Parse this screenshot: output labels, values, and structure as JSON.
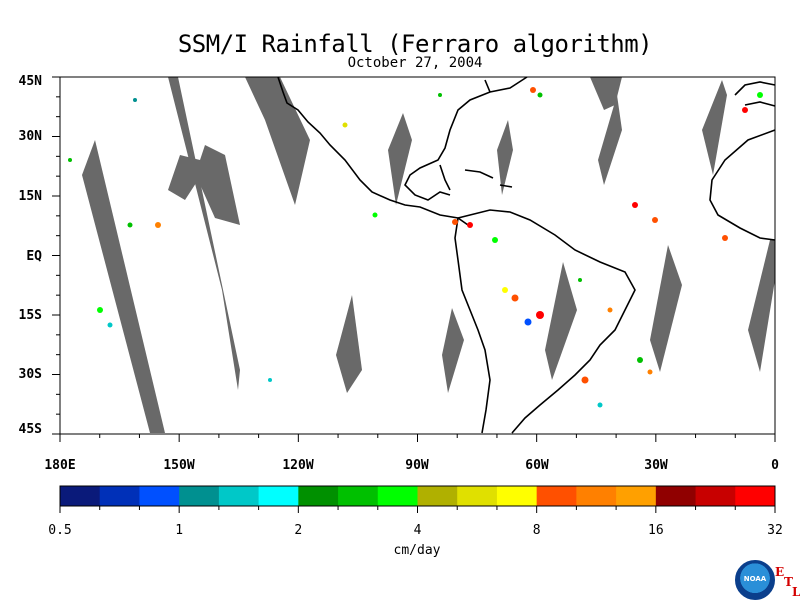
{
  "title": "SSM/I Rainfall (Ferraro algorithm)",
  "date": "October 27, 2004",
  "lat_labels": [
    "45N",
    "30N",
    "15N",
    "EQ",
    "15S",
    "30S",
    "45S"
  ],
  "lon_labels": [
    "180E",
    "150W",
    "120W",
    "90W",
    "60W",
    "30W",
    "0"
  ],
  "colorbar": {
    "tick_labels": [
      "0.5",
      "1",
      "2",
      "4",
      "8",
      "16",
      "32"
    ],
    "unit": "cm/day",
    "colors": [
      "#0a1a7a",
      "#0030b8",
      "#0050ff",
      "#009090",
      "#00c8c8",
      "#00ffff",
      "#009000",
      "#00c000",
      "#00ff00",
      "#b0b000",
      "#e0e000",
      "#ffff00",
      "#ff5000",
      "#ff8000",
      "#ffa000",
      "#900000",
      "#c80000",
      "#ff0000"
    ]
  },
  "map": {
    "land_outline_color": "#000000",
    "missing_swath_color": "#696969",
    "background_color": "#ffffff"
  },
  "logo": {
    "text": "NOAA",
    "letters": [
      "E",
      "T",
      "L"
    ]
  }
}
